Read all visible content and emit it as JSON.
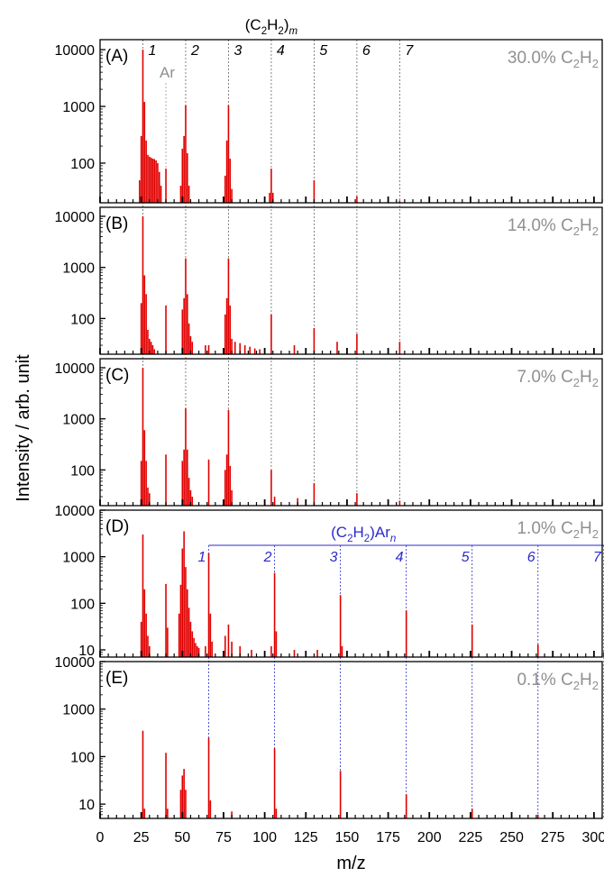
{
  "chart_data": {
    "type": "bar",
    "xlabel": "m/z",
    "ylabel": "Intensity / arb. unit",
    "xlim": [
      0,
      305
    ],
    "x_ticks": [
      0,
      25,
      50,
      75,
      100,
      125,
      150,
      175,
      200,
      225,
      250,
      275,
      300
    ],
    "scale": "log",
    "colors": {
      "peaks": "#e00000",
      "guides_top": "#666666",
      "guides_bottom": "#2a2acc",
      "concentration": "#909090",
      "ar_label": "#909090"
    },
    "series_top": {
      "label": "(C2H2)m",
      "label_parts": [
        "(C",
        "2",
        "H",
        "2",
        ")",
        "m"
      ],
      "x": [
        26,
        52,
        78,
        104,
        130,
        156,
        182
      ],
      "labels": [
        "1",
        "2",
        "3",
        "4",
        "5",
        "6",
        "7"
      ]
    },
    "series_bottom": {
      "label": "(C2H2)Arn",
      "label_parts": [
        "(C",
        "2",
        "H",
        "2",
        ")Ar",
        "n"
      ],
      "x": [
        66,
        106,
        146,
        186,
        226,
        266,
        306
      ],
      "labels": [
        "1",
        "2",
        "3",
        "4",
        "5",
        "6",
        "7"
      ]
    },
    "ar_label": "Ar",
    "ar_x": 40,
    "panels": [
      {
        "id": "(A)",
        "concentration": "30.0% C",
        "conc_sub": "2",
        "conc_mid": "H",
        "conc_sub2": "2",
        "ylim": [
          20,
          15000
        ],
        "yticks": [
          100,
          1000,
          10000
        ],
        "ytick_labels": [
          "100",
          "1000",
          "10000"
        ],
        "peaks": [
          {
            "x": 24,
            "y": 50
          },
          {
            "x": 25,
            "y": 300
          },
          {
            "x": 26,
            "y": 10000
          },
          {
            "x": 27,
            "y": 1200
          },
          {
            "x": 28,
            "y": 250
          },
          {
            "x": 29,
            "y": 140
          },
          {
            "x": 30,
            "y": 130
          },
          {
            "x": 31,
            "y": 125
          },
          {
            "x": 32,
            "y": 120
          },
          {
            "x": 33,
            "y": 118
          },
          {
            "x": 34,
            "y": 112
          },
          {
            "x": 35,
            "y": 100
          },
          {
            "x": 36,
            "y": 70
          },
          {
            "x": 37,
            "y": 40
          },
          {
            "x": 40,
            "y": 80
          },
          {
            "x": 49,
            "y": 40
          },
          {
            "x": 50,
            "y": 180
          },
          {
            "x": 51,
            "y": 300
          },
          {
            "x": 52,
            "y": 1050
          },
          {
            "x": 53,
            "y": 150
          },
          {
            "x": 54,
            "y": 40
          },
          {
            "x": 76,
            "y": 60
          },
          {
            "x": 77,
            "y": 250
          },
          {
            "x": 78,
            "y": 1050
          },
          {
            "x": 79,
            "y": 120
          },
          {
            "x": 80,
            "y": 35
          },
          {
            "x": 103,
            "y": 30
          },
          {
            "x": 104,
            "y": 80
          },
          {
            "x": 105,
            "y": 30
          },
          {
            "x": 130,
            "y": 50
          },
          {
            "x": 156,
            "y": 26
          },
          {
            "x": 182,
            "y": 22
          }
        ]
      },
      {
        "id": "(B)",
        "concentration": "14.0% C",
        "conc_sub": "2",
        "conc_mid": "H",
        "conc_sub2": "2",
        "ylim": [
          20,
          15000
        ],
        "yticks": [
          100,
          1000,
          10000
        ],
        "ytick_labels": [
          "100",
          "1000",
          "10000"
        ],
        "peaks": [
          {
            "x": 25,
            "y": 200
          },
          {
            "x": 26,
            "y": 10000
          },
          {
            "x": 27,
            "y": 700
          },
          {
            "x": 28,
            "y": 300
          },
          {
            "x": 29,
            "y": 60
          },
          {
            "x": 30,
            "y": 40
          },
          {
            "x": 31,
            "y": 35
          },
          {
            "x": 32,
            "y": 30
          },
          {
            "x": 33,
            "y": 25
          },
          {
            "x": 40,
            "y": 180
          },
          {
            "x": 50,
            "y": 150
          },
          {
            "x": 51,
            "y": 250
          },
          {
            "x": 52,
            "y": 1500
          },
          {
            "x": 53,
            "y": 300
          },
          {
            "x": 54,
            "y": 80
          },
          {
            "x": 55,
            "y": 45
          },
          {
            "x": 56,
            "y": 35
          },
          {
            "x": 64,
            "y": 30
          },
          {
            "x": 66,
            "y": 30
          },
          {
            "x": 76,
            "y": 120
          },
          {
            "x": 77,
            "y": 250
          },
          {
            "x": 78,
            "y": 1500
          },
          {
            "x": 79,
            "y": 180
          },
          {
            "x": 80,
            "y": 40
          },
          {
            "x": 82,
            "y": 35
          },
          {
            "x": 85,
            "y": 33
          },
          {
            "x": 88,
            "y": 30
          },
          {
            "x": 91,
            "y": 28
          },
          {
            "x": 94,
            "y": 26
          },
          {
            "x": 97,
            "y": 25
          },
          {
            "x": 104,
            "y": 120
          },
          {
            "x": 118,
            "y": 30
          },
          {
            "x": 130,
            "y": 65
          },
          {
            "x": 144,
            "y": 35
          },
          {
            "x": 156,
            "y": 50
          },
          {
            "x": 182,
            "y": 35
          }
        ]
      },
      {
        "id": "(C)",
        "concentration": "7.0% C",
        "conc_sub": "2",
        "conc_mid": "H",
        "conc_sub2": "2",
        "ylim": [
          20,
          15000
        ],
        "yticks": [
          100,
          1000,
          10000
        ],
        "ytick_labels": [
          "100",
          "1000",
          "10000"
        ],
        "peaks": [
          {
            "x": 25,
            "y": 150
          },
          {
            "x": 26,
            "y": 10000
          },
          {
            "x": 27,
            "y": 600
          },
          {
            "x": 28,
            "y": 150
          },
          {
            "x": 29,
            "y": 45
          },
          {
            "x": 30,
            "y": 35
          },
          {
            "x": 40,
            "y": 200
          },
          {
            "x": 50,
            "y": 150
          },
          {
            "x": 51,
            "y": 250
          },
          {
            "x": 52,
            "y": 1600
          },
          {
            "x": 53,
            "y": 250
          },
          {
            "x": 54,
            "y": 70
          },
          {
            "x": 55,
            "y": 40
          },
          {
            "x": 56,
            "y": 30
          },
          {
            "x": 66,
            "y": 160
          },
          {
            "x": 76,
            "y": 100
          },
          {
            "x": 77,
            "y": 200
          },
          {
            "x": 78,
            "y": 1500
          },
          {
            "x": 79,
            "y": 120
          },
          {
            "x": 80,
            "y": 40
          },
          {
            "x": 104,
            "y": 100
          },
          {
            "x": 106,
            "y": 30
          },
          {
            "x": 120,
            "y": 28
          },
          {
            "x": 130,
            "y": 55
          },
          {
            "x": 156,
            "y": 35
          },
          {
            "x": 182,
            "y": 25
          }
        ]
      },
      {
        "id": "(D)",
        "concentration": "1.0% C",
        "conc_sub": "2",
        "conc_mid": "H",
        "conc_sub2": "2",
        "ylim": [
          7,
          10000
        ],
        "yticks": [
          10,
          100,
          1000,
          10000
        ],
        "ytick_labels": [
          "10",
          "100",
          "1000",
          "10000"
        ],
        "peaks": [
          {
            "x": 25,
            "y": 40
          },
          {
            "x": 26,
            "y": 3000
          },
          {
            "x": 27,
            "y": 200
          },
          {
            "x": 28,
            "y": 60
          },
          {
            "x": 29,
            "y": 20
          },
          {
            "x": 30,
            "y": 12
          },
          {
            "x": 40,
            "y": 260
          },
          {
            "x": 41,
            "y": 30
          },
          {
            "x": 48,
            "y": 60
          },
          {
            "x": 49,
            "y": 250
          },
          {
            "x": 50,
            "y": 1500
          },
          {
            "x": 51,
            "y": 3500
          },
          {
            "x": 52,
            "y": 600
          },
          {
            "x": 53,
            "y": 200
          },
          {
            "x": 54,
            "y": 80
          },
          {
            "x": 55,
            "y": 40
          },
          {
            "x": 56,
            "y": 25
          },
          {
            "x": 57,
            "y": 18
          },
          {
            "x": 58,
            "y": 14
          },
          {
            "x": 59,
            "y": 12
          },
          {
            "x": 60,
            "y": 11
          },
          {
            "x": 64,
            "y": 12
          },
          {
            "x": 66,
            "y": 1200
          },
          {
            "x": 67,
            "y": 60
          },
          {
            "x": 68,
            "y": 15
          },
          {
            "x": 76,
            "y": 20
          },
          {
            "x": 78,
            "y": 35
          },
          {
            "x": 80,
            "y": 15
          },
          {
            "x": 85,
            "y": 12
          },
          {
            "x": 92,
            "y": 10
          },
          {
            "x": 104,
            "y": 12
          },
          {
            "x": 106,
            "y": 450
          },
          {
            "x": 107,
            "y": 25
          },
          {
            "x": 118,
            "y": 10
          },
          {
            "x": 132,
            "y": 10
          },
          {
            "x": 146,
            "y": 150
          },
          {
            "x": 147,
            "y": 12
          },
          {
            "x": 186,
            "y": 70
          },
          {
            "x": 226,
            "y": 35
          },
          {
            "x": 266,
            "y": 13
          },
          {
            "x": 306,
            "y": 9
          }
        ]
      },
      {
        "id": "(E)",
        "concentration": "0.1% C",
        "conc_sub": "2",
        "conc_mid": "H",
        "conc_sub2": "2",
        "ylim": [
          5,
          10000
        ],
        "yticks": [
          10,
          100,
          1000,
          10000
        ],
        "ytick_labels": [
          "10",
          "100",
          "1000",
          "10000"
        ],
        "peaks": [
          {
            "x": 26,
            "y": 350
          },
          {
            "x": 27,
            "y": 8
          },
          {
            "x": 40,
            "y": 120
          },
          {
            "x": 41,
            "y": 8
          },
          {
            "x": 49,
            "y": 20
          },
          {
            "x": 50,
            "y": 40
          },
          {
            "x": 51,
            "y": 55
          },
          {
            "x": 52,
            "y": 20
          },
          {
            "x": 66,
            "y": 250
          },
          {
            "x": 67,
            "y": 12
          },
          {
            "x": 80,
            "y": 7
          },
          {
            "x": 106,
            "y": 150
          },
          {
            "x": 107,
            "y": 8
          },
          {
            "x": 146,
            "y": 50
          },
          {
            "x": 186,
            "y": 16
          },
          {
            "x": 226,
            "y": 8
          },
          {
            "x": 266,
            "y": 6
          }
        ]
      }
    ]
  }
}
